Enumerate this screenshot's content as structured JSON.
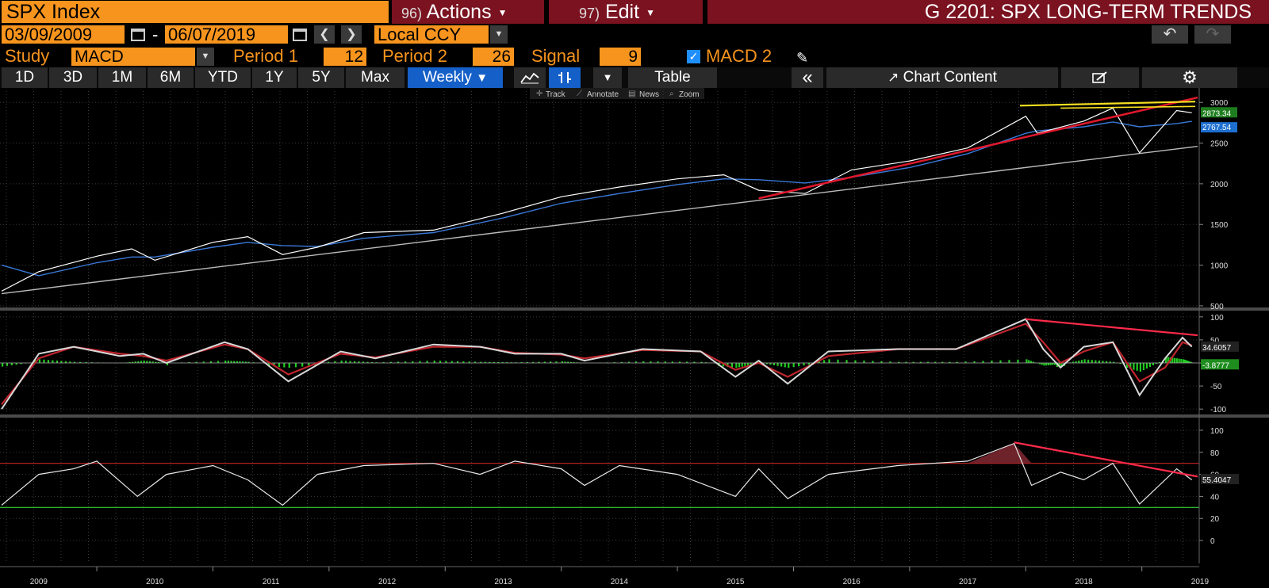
{
  "header": {
    "security": "SPX Index",
    "actions_num": "96)",
    "actions_label": "Actions",
    "edit_num": "97)",
    "edit_label": "Edit",
    "page_title": "G 2201: SPX LONG-TERM TRENDS"
  },
  "date_range": {
    "start": "03/09/2009",
    "separator": "-",
    "end": "06/07/2019",
    "currency": "Local CCY"
  },
  "study": {
    "study_label": "Study",
    "study_value": "MACD",
    "period1_label": "Period 1",
    "period1_value": "12",
    "period2_label": "Period 2",
    "period2_value": "26",
    "signal_label": "Signal",
    "signal_value": "9",
    "macd2_label": "MACD 2"
  },
  "toolbar": {
    "ranges": [
      "1D",
      "3D",
      "1M",
      "6M",
      "YTD",
      "1Y",
      "5Y",
      "Max"
    ],
    "frequency": "Weekly",
    "table_label": "Table",
    "chart_content_label": "Chart Content",
    "chart_tools": [
      "Track",
      "Annotate",
      "News",
      "Zoom"
    ]
  },
  "colors": {
    "accent_orange": "#f7941d",
    "title_red": "#7a1220",
    "selected_blue": "#1560c8",
    "price_line": "#ffffff",
    "moving_average": "#3a78d8",
    "trend_red": "#e0182c",
    "resistance_yellow": "#f5e020",
    "macd_positive": "#22cc22",
    "rsi_overbought": "#cc2222",
    "rsi_oversold": "#33cc33"
  },
  "chart_data": [
    {
      "type": "line",
      "panel": "price",
      "y_ticks": [
        "3000",
        "2500",
        "2000",
        "1500",
        "1000",
        "500"
      ],
      "ylim": [
        470,
        3080
      ],
      "x_labels": [
        "2009",
        "2010",
        "2011",
        "2012",
        "2013",
        "2014",
        "2015",
        "2016",
        "2017",
        "2018",
        "2019"
      ],
      "x": [
        2009.18,
        2009.5,
        2010.0,
        2010.3,
        2010.5,
        2011.0,
        2011.3,
        2011.6,
        2011.9,
        2012.3,
        2012.9,
        2013.5,
        2014.0,
        2014.5,
        2015.0,
        2015.4,
        2015.7,
        2016.1,
        2016.5,
        2017.0,
        2017.5,
        2018.0,
        2018.1,
        2018.5,
        2018.75,
        2018.98,
        2019.3,
        2019.43
      ],
      "series": [
        {
          "values": [
            680,
            920,
            1110,
            1200,
            1060,
            1280,
            1350,
            1130,
            1220,
            1400,
            1430,
            1640,
            1840,
            1960,
            2060,
            2110,
            1920,
            1880,
            2170,
            2280,
            2440,
            2830,
            2620,
            2770,
            2930,
            2380,
            2900,
            2873
          ]
        },
        {
          "values": [
            1000,
            870,
            1030,
            1100,
            1100,
            1220,
            1280,
            1240,
            1230,
            1330,
            1400,
            1580,
            1760,
            1880,
            1990,
            2060,
            2050,
            2010,
            2080,
            2200,
            2370,
            2620,
            2650,
            2700,
            2760,
            2700,
            2740,
            2767
          ]
        }
      ],
      "last_labels": [
        "2873.34",
        "2767.54"
      ]
    },
    {
      "type": "line",
      "panel": "macd",
      "y_ticks": [
        "100",
        "50",
        "0",
        "-50",
        "-100"
      ],
      "ylim": [
        -110,
        110
      ],
      "x": [
        2009.18,
        2009.5,
        2009.8,
        2010.2,
        2010.4,
        2010.6,
        2011.1,
        2011.3,
        2011.65,
        2012.1,
        2012.4,
        2012.9,
        2013.3,
        2013.6,
        2014.0,
        2014.2,
        2014.7,
        2015.2,
        2015.5,
        2015.7,
        2015.95,
        2016.3,
        2016.9,
        2017.4,
        2018.0,
        2018.15,
        2018.3,
        2018.5,
        2018.75,
        2018.98,
        2019.2,
        2019.35,
        2019.43
      ],
      "series": [
        {
          "values": [
            -100,
            20,
            35,
            15,
            20,
            0,
            45,
            30,
            -40,
            25,
            10,
            40,
            35,
            20,
            20,
            5,
            30,
            25,
            -30,
            5,
            -45,
            25,
            30,
            30,
            95,
            30,
            -10,
            35,
            45,
            -70,
            10,
            55,
            35
          ]
        },
        {
          "values": [
            -90,
            10,
            35,
            20,
            15,
            5,
            40,
            30,
            -25,
            20,
            12,
            35,
            35,
            22,
            18,
            10,
            28,
            25,
            -15,
            0,
            -30,
            15,
            30,
            30,
            85,
            45,
            0,
            25,
            45,
            -40,
            -10,
            45,
            38
          ]
        }
      ],
      "last_labels": [
        "34.6057",
        "-3.8777"
      ]
    },
    {
      "type": "line",
      "panel": "rsi",
      "y_ticks": [
        "100",
        "80",
        "60",
        "40",
        "20",
        "0"
      ],
      "ylim": [
        -5,
        105
      ],
      "x": [
        2009.18,
        2009.5,
        2009.8,
        2010.0,
        2010.35,
        2010.6,
        2011.0,
        2011.3,
        2011.6,
        2011.9,
        2012.3,
        2012.9,
        2013.3,
        2013.6,
        2014.0,
        2014.2,
        2014.5,
        2015.0,
        2015.5,
        2015.7,
        2015.95,
        2016.3,
        2016.9,
        2017.5,
        2017.9,
        2018.05,
        2018.3,
        2018.5,
        2018.75,
        2018.98,
        2019.3,
        2019.43
      ],
      "series": [
        {
          "values": [
            32,
            60,
            65,
            72,
            40,
            60,
            68,
            55,
            32,
            60,
            68,
            70,
            60,
            72,
            65,
            50,
            68,
            60,
            40,
            65,
            38,
            60,
            68,
            72,
            88,
            50,
            62,
            55,
            70,
            33,
            65,
            55
          ]
        }
      ],
      "reference_lines": [
        70,
        30
      ],
      "last_labels": [
        "55.4047"
      ]
    }
  ]
}
